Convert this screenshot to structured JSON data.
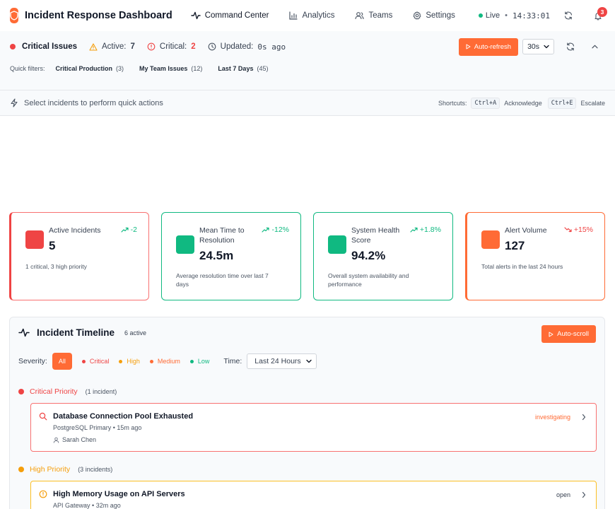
{
  "header": {
    "title": "Incident Response Dashboard",
    "nav": [
      {
        "label": "Command Center",
        "icon": "activity-icon"
      },
      {
        "label": "Analytics",
        "icon": "bar-chart-icon"
      },
      {
        "label": "Teams",
        "icon": "users-icon"
      },
      {
        "label": "Settings",
        "icon": "gear-icon"
      }
    ],
    "live_label": "Live",
    "time": "14:33:01",
    "notification_count": "3"
  },
  "status_bar": {
    "title": "Critical Issues",
    "active_label": "Active:",
    "active_value": "7",
    "critical_label": "Critical:",
    "critical_value": "2",
    "updated_label": "Updated:",
    "updated_value": "0s ago",
    "auto_refresh_label": "Auto-refresh",
    "interval_selected": "30s"
  },
  "quick_filters": {
    "label": "Quick filters:",
    "items": [
      {
        "label": "Critical Production",
        "count": "(3)"
      },
      {
        "label": "My Team Issues",
        "count": "(12)"
      },
      {
        "label": "Last 7 Days",
        "count": "(45)"
      }
    ]
  },
  "action_bar": {
    "text": "Select incidents to perform quick actions",
    "shortcuts_label": "Shortcuts:",
    "shortcuts": [
      {
        "key": "Ctrl+A",
        "action": "Acknowledge"
      },
      {
        "key": "Ctrl+E",
        "action": "Escalate"
      }
    ]
  },
  "metrics": [
    {
      "label": "Active Incidents",
      "value": "5",
      "trend": "-2",
      "trend_dir": "up",
      "desc": "1 critical, 3 high priority",
      "color": "#ef4444",
      "trend_color": "#10b981"
    },
    {
      "label": "Mean Time to Resolution",
      "value": "24.5m",
      "trend": "-12%",
      "trend_dir": "up",
      "desc": "Average resolution time over last 7 days",
      "color": "#10b981",
      "trend_color": "#10b981"
    },
    {
      "label": "System Health Score",
      "value": "94.2%",
      "trend": "+1.8%",
      "trend_dir": "up",
      "desc": "Overall system availability and performance",
      "color": "#10b981",
      "trend_color": "#10b981"
    },
    {
      "label": "Alert Volume",
      "value": "127",
      "trend": "+15%",
      "trend_dir": "down",
      "desc": "Total alerts in the last 24 hours",
      "color": "#ff6b35",
      "trend_color": "#ef4444"
    }
  ],
  "timeline": {
    "title": "Incident Timeline",
    "count": "6 active",
    "auto_scroll_label": "Auto-scroll",
    "severity_label": "Severity:",
    "severity_all": "All",
    "severities": [
      {
        "label": "Critical",
        "color": "#ef4444"
      },
      {
        "label": "High",
        "color": "#f59e0b"
      },
      {
        "label": "Medium",
        "color": "#ff6b35"
      },
      {
        "label": "Low",
        "color": "#10b981"
      }
    ],
    "time_label": "Time:",
    "time_selected": "Last 24 Hours",
    "groups": [
      {
        "title": "Critical Priority",
        "count": "(1 incident)",
        "color": "#ef4444",
        "incidents": [
          {
            "title": "Database Connection Pool Exhausted",
            "service": "PostgreSQL Primary",
            "age": "15m ago",
            "assignee": "Sarah Chen",
            "status": "investigating",
            "status_color": "#ff6b35",
            "icon": "search-icon"
          }
        ]
      },
      {
        "title": "High Priority",
        "count": "(3 incidents)",
        "color": "#f59e0b",
        "incidents": [
          {
            "title": "High Memory Usage on API Servers",
            "service": "API Gateway",
            "age": "32m ago",
            "status": "open",
            "status_color": "#374151",
            "icon": "alert-circle-icon"
          }
        ]
      }
    ]
  }
}
